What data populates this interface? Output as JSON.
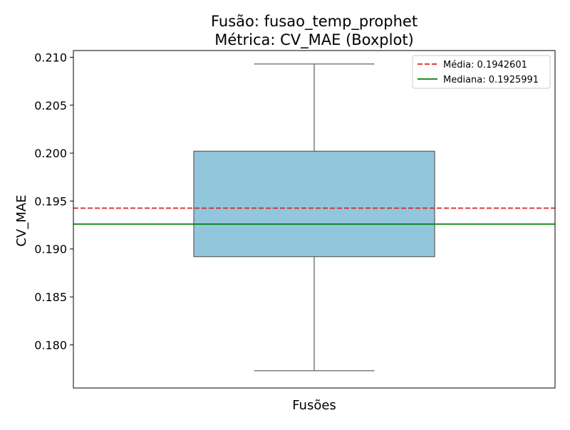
{
  "chart_data": {
    "type": "boxplot",
    "title_line1": "Fusão: fusao_temp_prophet",
    "title_line2": "Métrica: CV_MAE (Boxplot)",
    "xlabel": "Fusões",
    "ylabel": "CV_MAE",
    "ylim": [
      0.1755,
      0.2107
    ],
    "yticks": [
      0.18,
      0.185,
      0.19,
      0.195,
      0.2,
      0.205,
      0.21
    ],
    "ytick_labels": [
      "0.180",
      "0.185",
      "0.190",
      "0.195",
      "0.200",
      "0.205",
      "0.210"
    ],
    "box": {
      "whisker_low": 0.1773,
      "q1": 0.1892,
      "median": 0.1926,
      "q3": 0.2002,
      "whisker_high": 0.2093,
      "fill_color": "#92c6dc",
      "edge_color": "#666666"
    },
    "reference_lines": [
      {
        "label": "Média: 0.1942601",
        "value": 0.1942601,
        "color": "#d62728",
        "style": "dashed"
      },
      {
        "label": "Mediana: 0.1925991",
        "value": 0.1925991,
        "color": "#008000",
        "style": "solid"
      }
    ],
    "legend_position": "top-right",
    "grid": false
  }
}
